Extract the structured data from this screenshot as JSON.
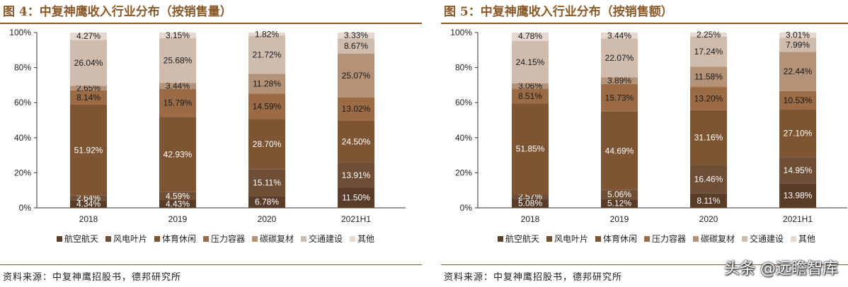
{
  "panels": [
    {
      "title": "图 4：中复神鹰收入行业分布（按销售量）",
      "source": "资料来源：中复神鹰招股书，德邦研究所"
    },
    {
      "title": "图 5：中复神鹰收入行业分布（按销售额）",
      "source": "资料来源：中复神鹰招股书，德邦研究所"
    }
  ],
  "watermark": "头条 @远瞻智库",
  "chart_data": [
    {
      "type": "bar",
      "stacked": true,
      "percent": true,
      "categories": [
        "2018",
        "2019",
        "2020",
        "2021H1"
      ],
      "ylim": [
        0,
        100
      ],
      "yticks": [
        "0%",
        "20%",
        "40%",
        "60%",
        "80%",
        "100%"
      ],
      "legend_position": "bottom",
      "series": [
        {
          "name": "航空航天",
          "color": "#5a3d28",
          "values": [
            4.34,
            4.43,
            6.78,
            11.5
          ]
        },
        {
          "name": "风电叶片",
          "color": "#6e4e34",
          "values": [
            2.64,
            4.59,
            15.11,
            13.91
          ]
        },
        {
          "name": "体育休闲",
          "color": "#7d5533",
          "values": [
            51.92,
            42.93,
            28.7,
            24.5
          ]
        },
        {
          "name": "压力容器",
          "color": "#9a6b44",
          "values": [
            8.14,
            15.79,
            14.59,
            13.02
          ]
        },
        {
          "name": "碳碳复材",
          "color": "#b39278",
          "values": [
            2.65,
            3.44,
            11.28,
            25.07
          ]
        },
        {
          "name": "交通建设",
          "color": "#cfbcad",
          "values": [
            26.04,
            25.68,
            21.72,
            8.67
          ]
        },
        {
          "name": "其他",
          "color": "#e4d8cf",
          "values": [
            4.27,
            3.15,
            1.82,
            3.33
          ]
        }
      ],
      "labels": [
        [
          "4.34%",
          "4.43%",
          "6.78%",
          "11.50%"
        ],
        [
          "2.64%",
          "4.59%",
          "15.11%",
          "13.91%"
        ],
        [
          "51.92%",
          "42.93%",
          "28.70%",
          "24.50%"
        ],
        [
          "8.14%",
          "15.79%",
          "14.59%",
          "13.02%"
        ],
        [
          "2.65%",
          "3.44%",
          "11.28%",
          "25.07%"
        ],
        [
          "26.04%",
          "25.68%",
          "21.72%",
          "8.67%"
        ],
        [
          "4.27%",
          "3.15%",
          "1.82%",
          "3.33%"
        ]
      ]
    },
    {
      "type": "bar",
      "stacked": true,
      "percent": true,
      "categories": [
        "2018",
        "2019",
        "2020",
        "2021H1"
      ],
      "ylim": [
        0,
        100
      ],
      "yticks": [
        "0%",
        "20%",
        "40%",
        "60%",
        "80%",
        "100%"
      ],
      "legend_position": "bottom",
      "series": [
        {
          "name": "航空航天",
          "color": "#5a3d28",
          "values": [
            5.08,
            5.12,
            8.11,
            13.98
          ]
        },
        {
          "name": "风电叶片",
          "color": "#6e4e34",
          "values": [
            2.57,
            5.06,
            16.46,
            14.95
          ]
        },
        {
          "name": "体育休闲",
          "color": "#7d5533",
          "values": [
            51.85,
            44.69,
            31.16,
            27.1
          ]
        },
        {
          "name": "压力容器",
          "color": "#9a6b44",
          "values": [
            8.51,
            15.73,
            13.2,
            10.53
          ]
        },
        {
          "name": "碳碳复材",
          "color": "#b39278",
          "values": [
            3.06,
            3.89,
            11.58,
            22.44
          ]
        },
        {
          "name": "交通建设",
          "color": "#cfbcad",
          "values": [
            24.15,
            22.07,
            17.24,
            7.99
          ]
        },
        {
          "name": "其他",
          "color": "#e4d8cf",
          "values": [
            4.78,
            3.44,
            2.25,
            3.01
          ]
        }
      ],
      "labels": [
        [
          "5.08%",
          "5.12%",
          "8.11%",
          "13.98%"
        ],
        [
          "2.57%",
          "5.06%",
          "16.46%",
          "14.95%"
        ],
        [
          "51.85%",
          "44.69%",
          "31.16%",
          "27.10%"
        ],
        [
          "8.51%",
          "15.73%",
          "13.20%",
          "10.53%"
        ],
        [
          "3.06%",
          "3.89%",
          "11.58%",
          "22.44%"
        ],
        [
          "24.15%",
          "22.07%",
          "17.24%",
          "7.99%"
        ],
        [
          "4.78%",
          "3.44%",
          "2.25%",
          "3.01%"
        ]
      ]
    }
  ]
}
